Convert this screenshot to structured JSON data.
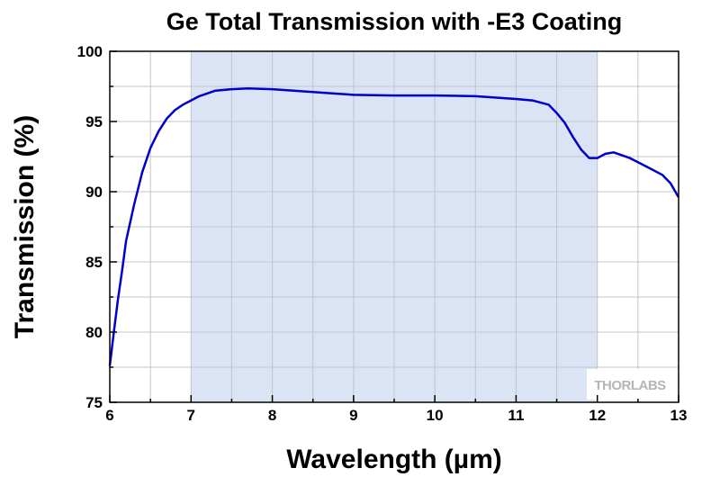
{
  "chart_data": {
    "type": "line",
    "title": "Ge Total Transmission with -E3 Coating",
    "xlabel": "Wavelength (µm)",
    "ylabel": "Transmission (%)",
    "xlim": [
      6,
      13
    ],
    "ylim": [
      75,
      100
    ],
    "x_ticks": [
      "6",
      "7",
      "8",
      "9",
      "10",
      "11",
      "12",
      "13"
    ],
    "y_ticks": [
      "75",
      "80",
      "85",
      "90",
      "95",
      "100"
    ],
    "grid": true,
    "highlight_band": {
      "x_start": 7,
      "x_end": 12,
      "color": "#dbe4f5"
    },
    "series": [
      {
        "color": "#0000cc",
        "x": [
          6.0,
          6.05,
          6.1,
          6.15,
          6.2,
          6.3,
          6.4,
          6.5,
          6.6,
          6.7,
          6.8,
          6.9,
          7.0,
          7.1,
          7.2,
          7.3,
          7.5,
          7.7,
          8.0,
          8.5,
          9.0,
          9.5,
          10.0,
          10.5,
          11.0,
          11.2,
          11.4,
          11.5,
          11.6,
          11.7,
          11.8,
          11.9,
          12.0,
          12.1,
          12.2,
          12.4,
          12.6,
          12.8,
          12.9,
          13.0
        ],
        "y": [
          77.6,
          80.0,
          82.3,
          84.3,
          86.5,
          89.1,
          91.4,
          93.1,
          94.3,
          95.2,
          95.8,
          96.2,
          96.5,
          96.8,
          97.0,
          97.2,
          97.3,
          97.35,
          97.3,
          97.1,
          96.9,
          96.85,
          96.85,
          96.8,
          96.6,
          96.5,
          96.2,
          95.6,
          94.9,
          93.9,
          93.0,
          92.4,
          92.4,
          92.7,
          92.8,
          92.4,
          91.8,
          91.2,
          90.6,
          89.6
        ]
      }
    ],
    "watermark": "THORLABS"
  }
}
